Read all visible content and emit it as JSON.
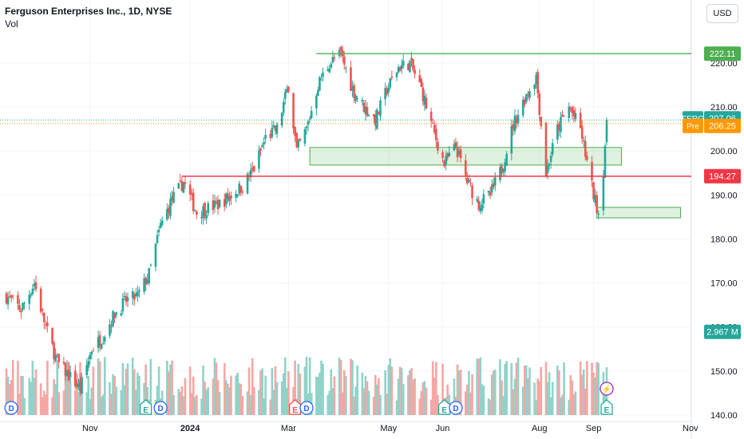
{
  "header": {
    "title": "Ferguson Enterprises Inc., 1D, NYSE",
    "volume_label": "Vol"
  },
  "currency_button": "USD",
  "colors": {
    "up": "#26a69a",
    "down": "#ef5350",
    "vol_up": "#8fd3c9",
    "vol_down": "#f5a6a5",
    "resistance": "#4caf50",
    "support": "#f23645",
    "pre": "#ff9800",
    "last": "#26a69a",
    "grid": "#f0f3fa"
  },
  "chart_data": {
    "type": "candlestick",
    "ylim": [
      140,
      230
    ],
    "y_ticks": [
      140,
      150,
      160,
      170,
      180,
      190,
      200,
      210,
      220
    ],
    "y_tick_labels": [
      "140.00",
      "150.00",
      "160.00",
      "170.00",
      "180.00",
      "190.00",
      "200.00",
      "210.00",
      "220.00"
    ],
    "x_labels": [
      "Nov",
      "2024",
      "Mar",
      "May",
      "Jun",
      "Aug",
      "Sep",
      "Nov"
    ],
    "x_label_dates": [
      "2023-11-01",
      "2024-01-01",
      "2024-03-01",
      "2024-05-01",
      "2024-06-03",
      "2024-08-01",
      "2024-09-03",
      "2024-11-01"
    ],
    "date_range": [
      "2023-09-11",
      "2024-09-11"
    ],
    "close_path": [
      {
        "date": "2023-09-11",
        "close": 167
      },
      {
        "date": "2023-09-20",
        "close": 164
      },
      {
        "date": "2023-09-28",
        "close": 170
      },
      {
        "date": "2023-10-05",
        "close": 160
      },
      {
        "date": "2023-10-12",
        "close": 152
      },
      {
        "date": "2023-10-19",
        "close": 149
      },
      {
        "date": "2023-10-26",
        "close": 146
      },
      {
        "date": "2023-11-02",
        "close": 155
      },
      {
        "date": "2023-11-09",
        "close": 158
      },
      {
        "date": "2023-11-16",
        "close": 163
      },
      {
        "date": "2023-11-23",
        "close": 166
      },
      {
        "date": "2023-11-30",
        "close": 167
      },
      {
        "date": "2023-12-07",
        "close": 172
      },
      {
        "date": "2023-12-14",
        "close": 183
      },
      {
        "date": "2023-12-21",
        "close": 189
      },
      {
        "date": "2023-12-28",
        "close": 193
      },
      {
        "date": "2024-01-05",
        "close": 186
      },
      {
        "date": "2024-01-12",
        "close": 187
      },
      {
        "date": "2024-01-19",
        "close": 188
      },
      {
        "date": "2024-01-26",
        "close": 190
      },
      {
        "date": "2024-02-02",
        "close": 192
      },
      {
        "date": "2024-02-09",
        "close": 196
      },
      {
        "date": "2024-02-16",
        "close": 203
      },
      {
        "date": "2024-02-23",
        "close": 205
      },
      {
        "date": "2024-03-01",
        "close": 215
      },
      {
        "date": "2024-03-06",
        "close": 200
      },
      {
        "date": "2024-03-12",
        "close": 205
      },
      {
        "date": "2024-03-19",
        "close": 215
      },
      {
        "date": "2024-03-26",
        "close": 220
      },
      {
        "date": "2024-04-02",
        "close": 222
      },
      {
        "date": "2024-04-09",
        "close": 214
      },
      {
        "date": "2024-04-16",
        "close": 210
      },
      {
        "date": "2024-04-23",
        "close": 207
      },
      {
        "date": "2024-04-30",
        "close": 214
      },
      {
        "date": "2024-05-07",
        "close": 219
      },
      {
        "date": "2024-05-14",
        "close": 220
      },
      {
        "date": "2024-05-21",
        "close": 214
      },
      {
        "date": "2024-05-28",
        "close": 205
      },
      {
        "date": "2024-06-04",
        "close": 197
      },
      {
        "date": "2024-06-11",
        "close": 201
      },
      {
        "date": "2024-06-18",
        "close": 193
      },
      {
        "date": "2024-06-25",
        "close": 188
      },
      {
        "date": "2024-07-02",
        "close": 190
      },
      {
        "date": "2024-07-09",
        "close": 196
      },
      {
        "date": "2024-07-16",
        "close": 206
      },
      {
        "date": "2024-07-23",
        "close": 212
      },
      {
        "date": "2024-07-30",
        "close": 217
      },
      {
        "date": "2024-08-05",
        "close": 195
      },
      {
        "date": "2024-08-12",
        "close": 205
      },
      {
        "date": "2024-08-19",
        "close": 210
      },
      {
        "date": "2024-08-26",
        "close": 205
      },
      {
        "date": "2024-09-03",
        "close": 190
      },
      {
        "date": "2024-09-06",
        "close": 186
      },
      {
        "date": "2024-09-09",
        "close": 196
      },
      {
        "date": "2024-09-11",
        "close": 207.06
      }
    ],
    "horizontal_levels": [
      {
        "name": "resistance",
        "value": 222.11,
        "label": "222.11",
        "color": "#4caf50",
        "start": "2024-03-18",
        "end": "2024-11-01"
      },
      {
        "name": "support",
        "value": 194.27,
        "label": "194.27",
        "color": "#f23645",
        "start": "2023-12-27",
        "end": "2024-11-01"
      }
    ],
    "zones": [
      {
        "name": "demand-zone",
        "y_low": 196.8,
        "y_high": 200.8,
        "start": "2024-03-14",
        "end": "2024-09-20"
      },
      {
        "name": "lower-zone",
        "y_low": 184.8,
        "y_high": 187.2,
        "start": "2024-09-05",
        "end": "2024-10-26"
      }
    ],
    "price_labels": [
      {
        "ticker": "FERG",
        "value": 207.06,
        "text": "207.06",
        "color": "#26a69a"
      },
      {
        "ticker": "Pre",
        "value": 206.25,
        "text": "206.25",
        "color": "#ff9800"
      }
    ],
    "volume_label": "2.967 M",
    "volume_label_value": 160,
    "events": [
      {
        "type": "D",
        "date": "2023-09-14"
      },
      {
        "type": "E",
        "date": "2023-12-05"
      },
      {
        "type": "D",
        "date": "2023-12-14"
      },
      {
        "type": "E",
        "date": "2024-03-05"
      },
      {
        "type": "D",
        "date": "2024-03-12"
      },
      {
        "type": "E",
        "date": "2024-06-04"
      },
      {
        "type": "D",
        "date": "2024-06-11"
      },
      {
        "type": "E",
        "date": "2024-09-11"
      }
    ],
    "flash_event": {
      "type": "⚡",
      "date": "2024-09-11"
    }
  }
}
